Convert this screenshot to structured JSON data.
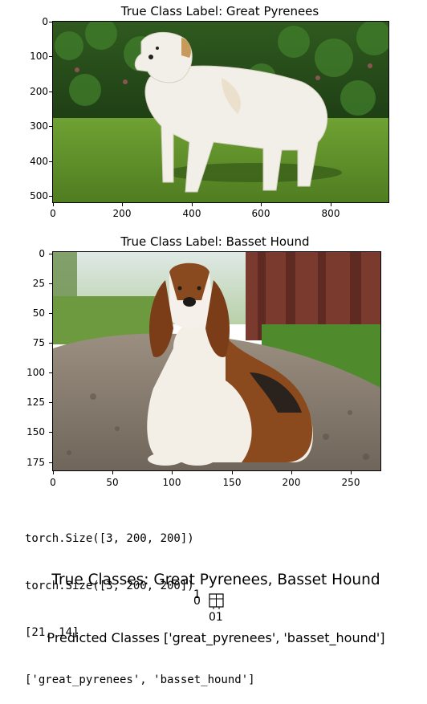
{
  "plot1": {
    "title": "True Class Label: Great Pyrenees",
    "yticks": [
      "0",
      "100",
      "200",
      "300",
      "400",
      "500"
    ],
    "xticks": [
      "0",
      "200",
      "400",
      "600",
      "800"
    ]
  },
  "plot2": {
    "title": "True Class Label: Basset Hound",
    "yticks": [
      "0",
      "25",
      "50",
      "75",
      "100",
      "125",
      "150",
      "175"
    ],
    "xticks": [
      "0",
      "50",
      "100",
      "150",
      "200",
      "250"
    ]
  },
  "console": {
    "lines": [
      "torch.Size([3, 200, 200])",
      "torch.Size([3, 200, 200])",
      "[21, 14]",
      "['great_pyrenees', 'basset_hound']"
    ]
  },
  "bottom": {
    "true_classes": "True Classes: Great Pyrenees, Basset Hound",
    "tiny_top": "1",
    "tiny_left": "0",
    "tiny_bottom": "01",
    "predicted": "Predicted Classes ['great_pyrenees', 'basset_hound']"
  }
}
